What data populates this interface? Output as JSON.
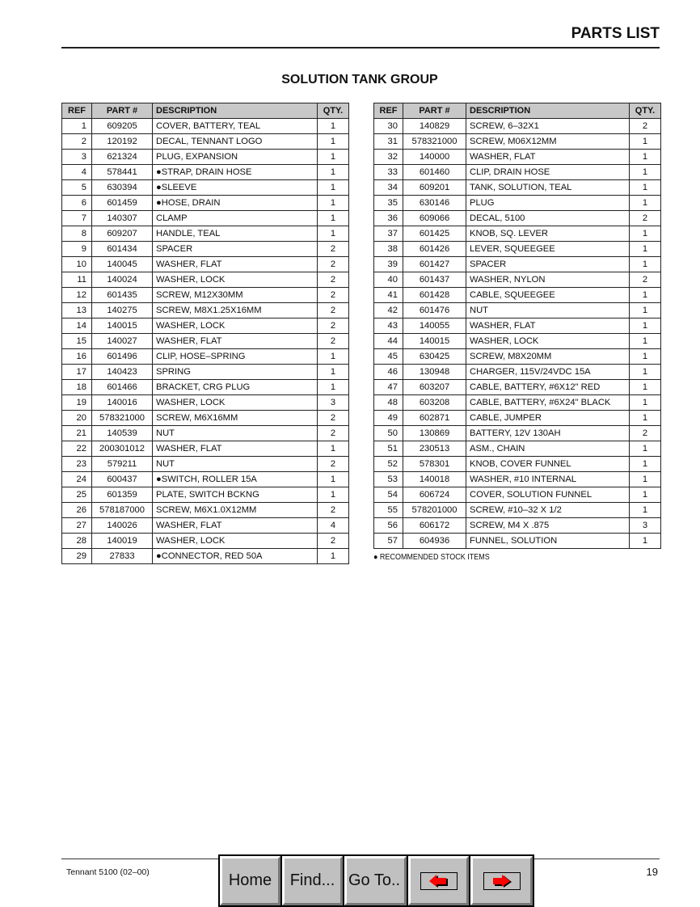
{
  "header": {
    "title": "PARTS LIST"
  },
  "group_title": "SOLUTION TANK GROUP",
  "columns": {
    "ref": "REF",
    "part": "PART #",
    "desc": "DESCRIPTION",
    "qty": "QTY."
  },
  "left_rows": [
    [
      "1",
      "609205",
      "COVER, BATTERY, TEAL",
      "1"
    ],
    [
      "2",
      "120192",
      "DECAL, TENNANT LOGO",
      "1"
    ],
    [
      "3",
      "621324",
      "PLUG, EXPANSION",
      "1"
    ],
    [
      "4",
      "578441",
      "●STRAP, DRAIN HOSE",
      "1"
    ],
    [
      "5",
      "630394",
      "●SLEEVE",
      "1"
    ],
    [
      "6",
      "601459",
      "●HOSE, DRAIN",
      "1"
    ],
    [
      "7",
      "140307",
      "CLAMP",
      "1"
    ],
    [
      "8",
      "609207",
      "HANDLE, TEAL",
      "1"
    ],
    [
      "9",
      "601434",
      "SPACER",
      "2"
    ],
    [
      "10",
      "140045",
      "WASHER, FLAT",
      "2"
    ],
    [
      "11",
      "140024",
      "WASHER, LOCK",
      "2"
    ],
    [
      "12",
      "601435",
      "SCREW, M12X30MM",
      "2"
    ],
    [
      "13",
      "140275",
      "SCREW, M8X1.25X16MM",
      "2"
    ],
    [
      "14",
      "140015",
      "WASHER, LOCK",
      "2"
    ],
    [
      "15",
      "140027",
      "WASHER, FLAT",
      "2"
    ],
    [
      "16",
      "601496",
      "CLIP, HOSE–SPRING",
      "1"
    ],
    [
      "17",
      "140423",
      "SPRING",
      "1"
    ],
    [
      "18",
      "601466",
      "BRACKET, CRG PLUG",
      "1"
    ],
    [
      "19",
      "140016",
      "WASHER, LOCK",
      "3"
    ],
    [
      "20",
      "578321000",
      "SCREW, M6X16MM",
      "2"
    ],
    [
      "21",
      "140539",
      "NUT",
      "2"
    ],
    [
      "22",
      "200301012",
      "WASHER, FLAT",
      "1"
    ],
    [
      "23",
      "579211",
      "NUT",
      "2"
    ],
    [
      "24",
      "600437",
      "●SWITCH, ROLLER 15A",
      "1"
    ],
    [
      "25",
      "601359",
      "PLATE, SWITCH BCKNG",
      "1"
    ],
    [
      "26",
      "578187000",
      "SCREW, M6X1.0X12MM",
      "2"
    ],
    [
      "27",
      "140026",
      "WASHER, FLAT",
      "4"
    ],
    [
      "28",
      "140019",
      "WASHER, LOCK",
      "2"
    ],
    [
      "29",
      "27833",
      "●CONNECTOR, RED 50A",
      "1"
    ]
  ],
  "right_rows": [
    [
      "30",
      "140829",
      "SCREW, 6–32X1",
      "2"
    ],
    [
      "31",
      "578321000",
      "SCREW, M06X12MM",
      "1"
    ],
    [
      "32",
      "140000",
      "WASHER, FLAT",
      "1"
    ],
    [
      "33",
      "601460",
      "CLIP, DRAIN HOSE",
      "1"
    ],
    [
      "34",
      "609201",
      "TANK, SOLUTION, TEAL",
      "1"
    ],
    [
      "35",
      "630146",
      "PLUG",
      "1"
    ],
    [
      "36",
      "609066",
      "DECAL, 5100",
      "2"
    ],
    [
      "37",
      "601425",
      "KNOB, SQ. LEVER",
      "1"
    ],
    [
      "38",
      "601426",
      "LEVER, SQUEEGEE",
      "1"
    ],
    [
      "39",
      "601427",
      "SPACER",
      "1"
    ],
    [
      "40",
      "601437",
      "WASHER, NYLON",
      "2"
    ],
    [
      "41",
      "601428",
      "CABLE, SQUEEGEE",
      "1"
    ],
    [
      "42",
      "601476",
      "NUT",
      "1"
    ],
    [
      "43",
      "140055",
      "WASHER, FLAT",
      "1"
    ],
    [
      "44",
      "140015",
      "WASHER, LOCK",
      "1"
    ],
    [
      "45",
      "630425",
      "SCREW, M8X20MM",
      "1"
    ],
    [
      "46",
      "130948",
      "CHARGER, 115V/24VDC 15A",
      "1"
    ],
    [
      "47",
      "603207",
      "CABLE, BATTERY, #6X12\" RED",
      "1"
    ],
    [
      "48",
      "603208",
      "CABLE, BATTERY, #6X24\" BLACK",
      "1"
    ],
    [
      "49",
      "602871",
      "CABLE, JUMPER",
      "1"
    ],
    [
      "50",
      "130869",
      "BATTERY, 12V 130AH",
      "2"
    ],
    [
      "51",
      "230513",
      "ASM., CHAIN",
      "1"
    ],
    [
      "52",
      "578301",
      "KNOB, COVER FUNNEL",
      "1"
    ],
    [
      "53",
      "140018",
      "WASHER, #10 INTERNAL",
      "1"
    ],
    [
      "54",
      "606724",
      "COVER, SOLUTION FUNNEL",
      "1"
    ],
    [
      "55",
      "578201000",
      "SCREW, #10–32 X 1/2",
      "1"
    ],
    [
      "56",
      "606172",
      "SCREW, M4 X .875",
      "3"
    ],
    [
      "57",
      "604936",
      "FUNNEL, SOLUTION",
      "1"
    ]
  ],
  "note": "● RECOMMENDED STOCK ITEMS",
  "footer": {
    "left": "Tennant 5100  (02–00)",
    "page": "19"
  },
  "nav": {
    "home": "Home",
    "find": "Find...",
    "goto": "Go To..",
    "prev_icon": "arrow-left-icon",
    "next_icon": "arrow-right-icon",
    "arrow_color": "#ff0000"
  }
}
